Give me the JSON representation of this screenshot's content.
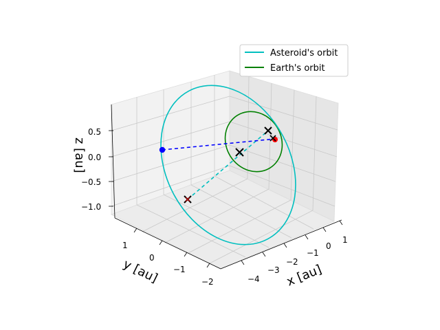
{
  "chart_data": {
    "type": "line3d",
    "projection": "3d",
    "xlabel": "x [au]",
    "ylabel": "y [au]",
    "zlabel": "z [au]",
    "xticks": [
      "−4",
      "−3",
      "−2",
      "−1",
      "0",
      "1"
    ],
    "yticks": [
      "−2",
      "−1",
      "0",
      "1"
    ],
    "zticks": [
      "−1.0",
      "−0.5",
      "0.0",
      "0.5"
    ],
    "grid": true,
    "legend": {
      "position": "top-right",
      "entries": [
        "Asteroid's orbit",
        "Earth's orbit"
      ]
    },
    "series": [
      {
        "name": "Asteroid's orbit",
        "color": "#00bfbf",
        "kind": "closed-orbit",
        "description_points": "large tilted ellipse"
      },
      {
        "name": "Earth's orbit",
        "color": "#008000",
        "kind": "closed-orbit",
        "description_points": "ellipse of radius ~1 au"
      }
    ],
    "markers": [
      {
        "label": "asteroid position",
        "color": "#0000ff",
        "symbol": "dot"
      },
      {
        "label": "earth position",
        "color": "#ff0000",
        "symbol": "dot"
      },
      {
        "label": "orbit node",
        "color": "#000000",
        "symbol": "x"
      },
      {
        "label": "orbit node",
        "color": "#000000",
        "symbol": "x"
      },
      {
        "label": "sun",
        "color": "#000000",
        "symbol": "x"
      },
      {
        "label": "node marker",
        "color": "#cc0000",
        "symbol": "x"
      }
    ],
    "lines": [
      {
        "from": "asteroid",
        "to": "earth",
        "color": "#0000ff",
        "style": "dashed"
      },
      {
        "from": "node-lower",
        "to": "node-upper",
        "color": "#00bfbf",
        "style": "dashed"
      }
    ]
  }
}
